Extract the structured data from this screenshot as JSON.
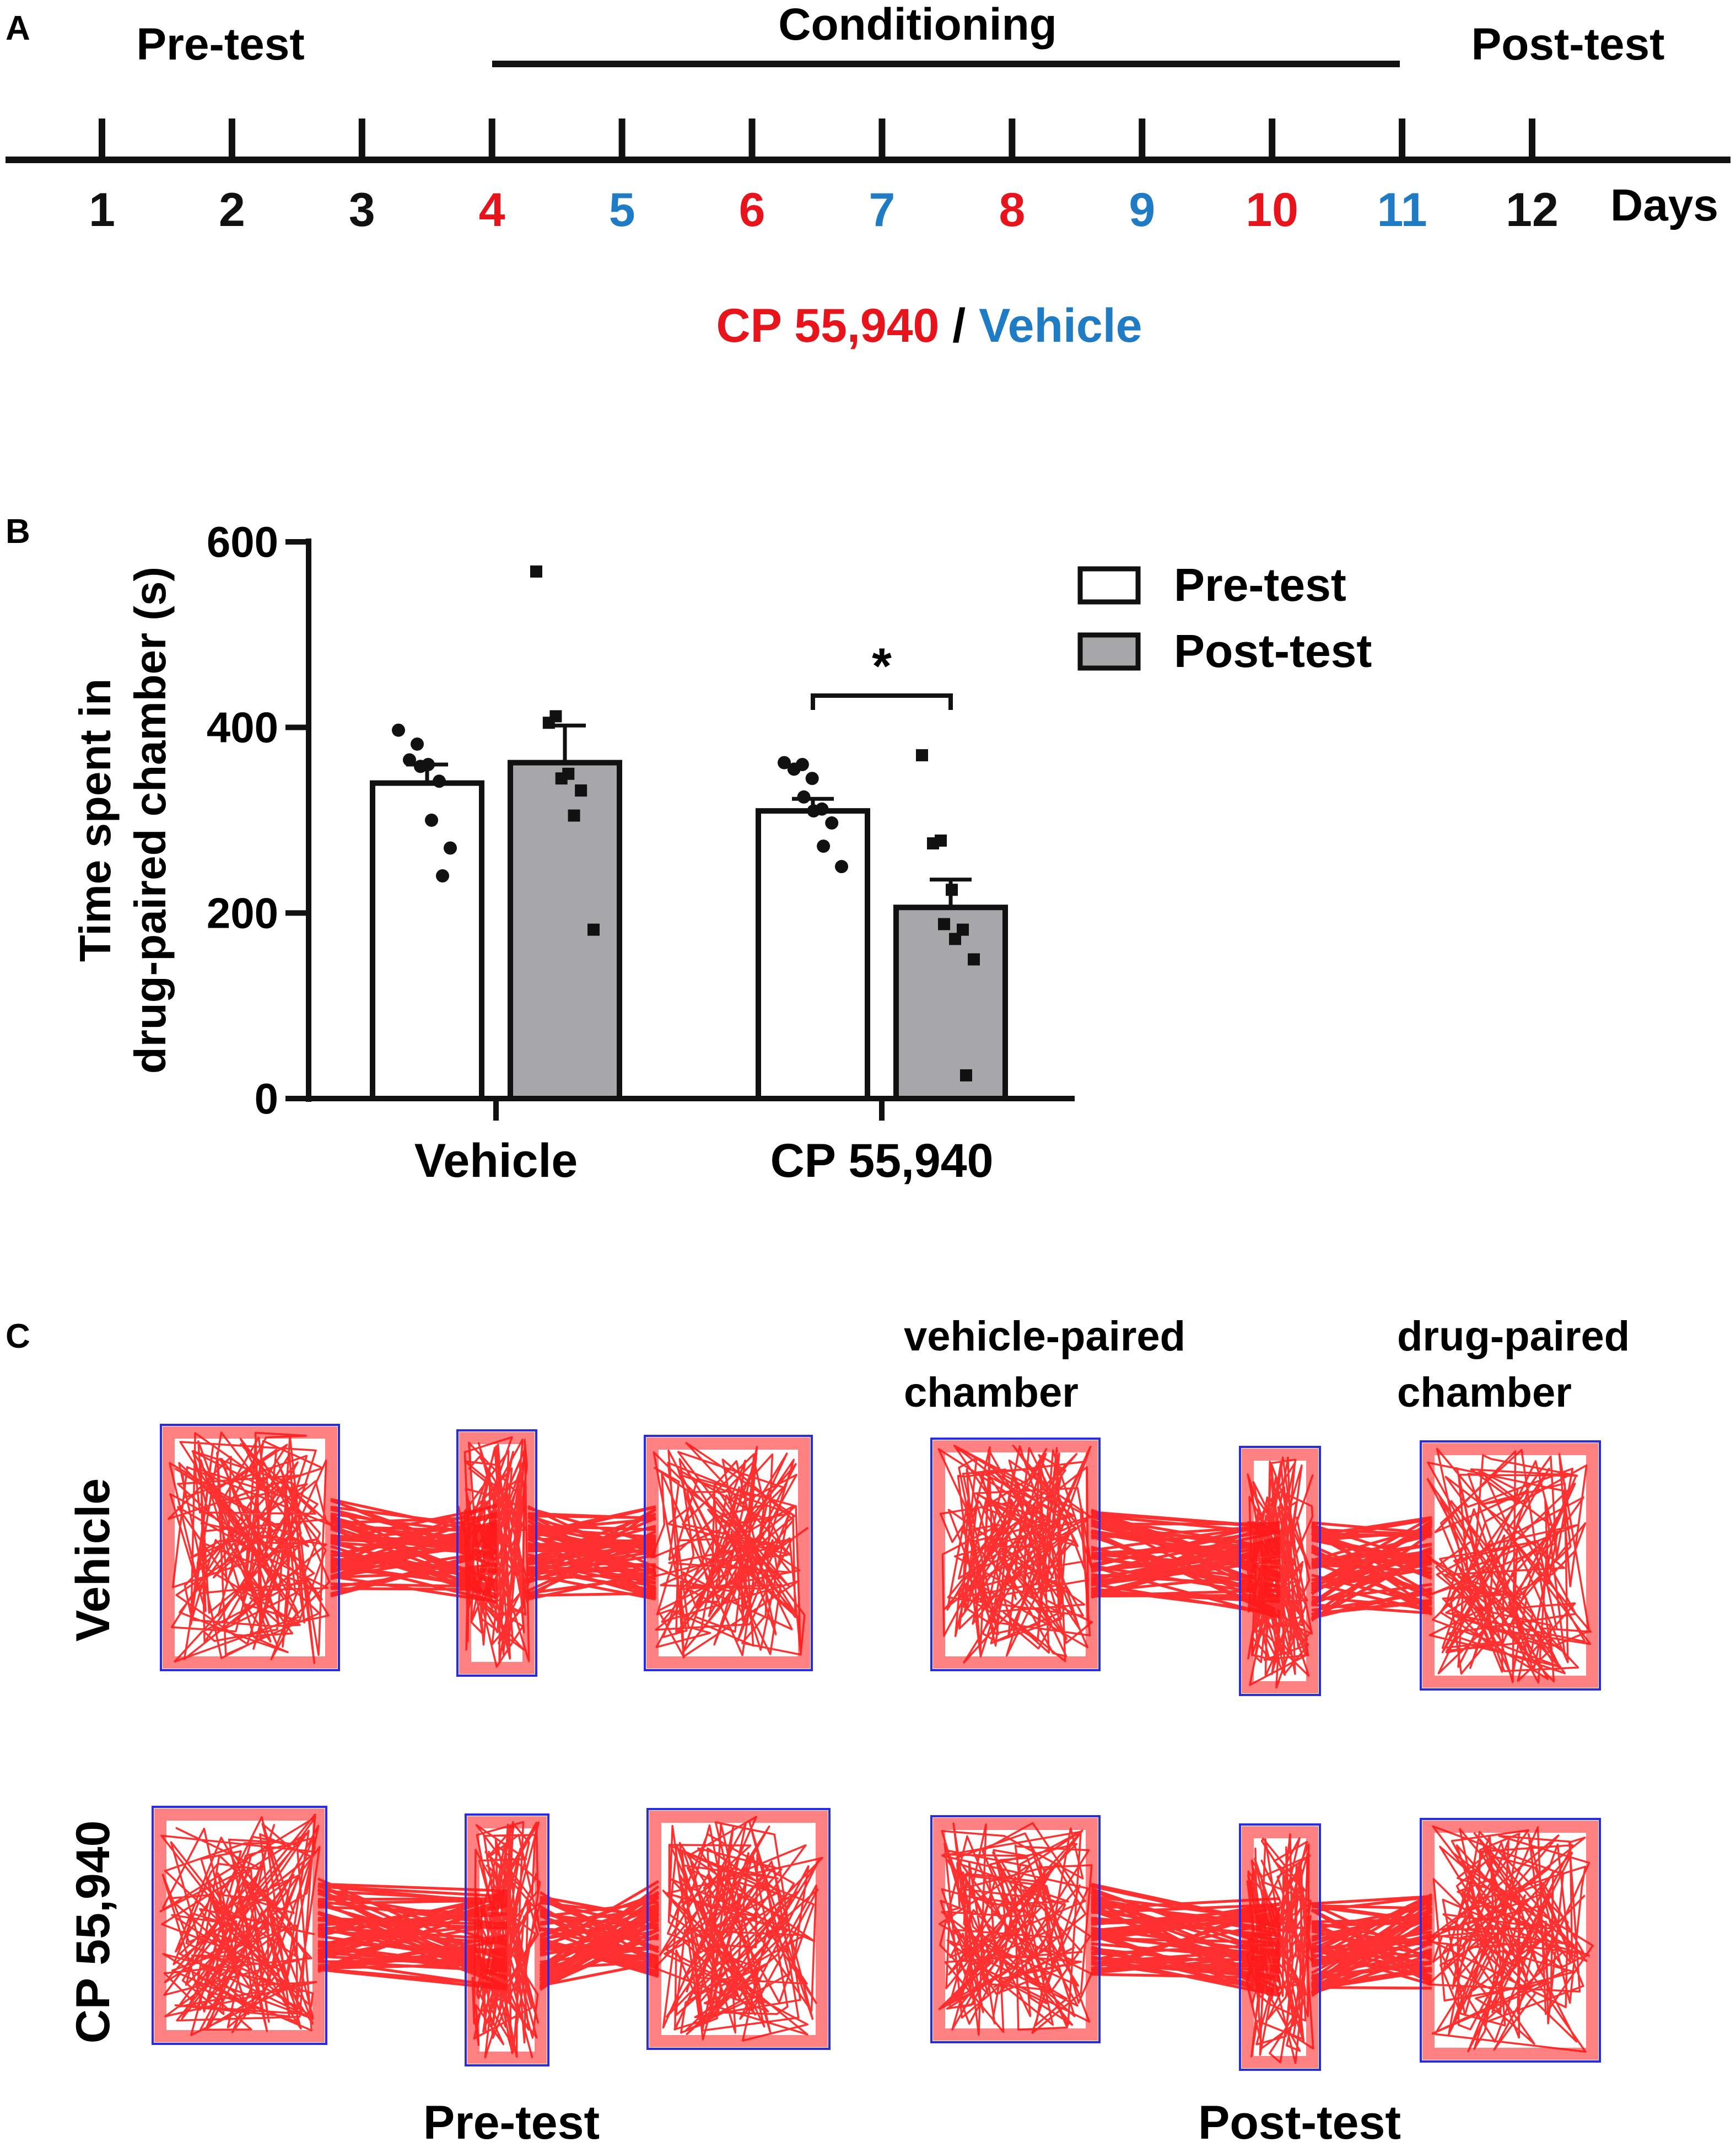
{
  "colors": {
    "drug": "#e8141c",
    "vehicle": "#1f7bc4",
    "text": "#111111",
    "post_bar": "#a7a7a9",
    "track": "#ff1a1a",
    "box": "#2a2ae0"
  },
  "panel_a": {
    "letter": "A",
    "phases": {
      "pre": "Pre-test",
      "conditioning": "Conditioning",
      "post": "Post-test"
    },
    "days_label": "Days",
    "days": [
      {
        "label": "1",
        "kind": "test"
      },
      {
        "label": "2",
        "kind": "test"
      },
      {
        "label": "3",
        "kind": "test"
      },
      {
        "label": "4",
        "kind": "drug"
      },
      {
        "label": "5",
        "kind": "vehicle"
      },
      {
        "label": "6",
        "kind": "drug"
      },
      {
        "label": "7",
        "kind": "vehicle"
      },
      {
        "label": "8",
        "kind": "drug"
      },
      {
        "label": "9",
        "kind": "vehicle"
      },
      {
        "label": "10",
        "kind": "drug"
      },
      {
        "label": "11",
        "kind": "vehicle"
      },
      {
        "label": "12",
        "kind": "test"
      }
    ],
    "treatment_drug": "CP 55,940",
    "treatment_sep": " / ",
    "treatment_vehicle": "Vehicle"
  },
  "panel_b": {
    "letter": "B"
  },
  "chart_data": {
    "type": "bar",
    "ylabel": [
      "Time spent in",
      "drug-paired chamber (s)"
    ],
    "ylim": [
      0,
      600
    ],
    "yticks": [
      0,
      200,
      400,
      600
    ],
    "categories": [
      "Vehicle",
      "CP 55,940"
    ],
    "series": [
      {
        "name": "Pre-test",
        "values": [
          340,
          310
        ],
        "sem": [
          20,
          13
        ],
        "points": [
          [
            397,
            382,
            365,
            360,
            358,
            342,
            300,
            270,
            240
          ],
          [
            362,
            360,
            355,
            345,
            325,
            312,
            310,
            297,
            272,
            250
          ]
        ]
      },
      {
        "name": "Post-test",
        "values": [
          362,
          206
        ],
        "sem": [
          40,
          30
        ],
        "points": [
          [
            568,
            412,
            405,
            350,
            345,
            332,
            305,
            182
          ],
          [
            370,
            278,
            275,
            225,
            188,
            182,
            172,
            150,
            25
          ]
        ]
      }
    ],
    "significance": "*",
    "legend_position": "right"
  },
  "panel_c": {
    "letter": "C",
    "row_labels": [
      "Vehicle",
      "CP 55,940"
    ],
    "col_labels": [
      "Pre-test",
      "Post-test"
    ],
    "chamber_labels": {
      "vehicle": [
        "vehicle-paired",
        "chamber"
      ],
      "drug": [
        "drug-paired",
        "chamber"
      ]
    }
  }
}
